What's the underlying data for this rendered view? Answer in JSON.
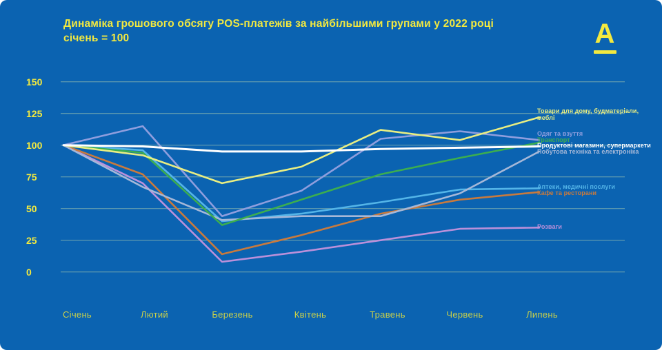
{
  "colors": {
    "background": "#0b63b1",
    "page_corner": "#ffffff",
    "accent_yellow": "#f3e93f",
    "month_label": "#c9d04a",
    "gridline": "rgba(205,228,175,0.55)"
  },
  "title": {
    "line1": "Динаміка грошового обсягу POS-платежів за найбільшими групами у 2022 році",
    "line2": "січень = 100"
  },
  "logo": {
    "letter": "А"
  },
  "chart_data": {
    "type": "line",
    "categories": [
      "Січень",
      "Лютий",
      "Березень",
      "Квітень",
      "Травень",
      "Червень",
      "Липень"
    ],
    "baseline_note": "січень = 100",
    "ylim": [
      0,
      150
    ],
    "yticks": [
      150,
      125,
      100,
      75,
      50,
      25,
      0
    ],
    "grid": true,
    "legend_position": "right-end-of-lines",
    "series": [
      {
        "name": "Товари для дому, будматеріали, меблі",
        "legend_lines": [
          "Товари для дому, будматеріали,",
          "меблі"
        ],
        "color": "#e9ee82",
        "bold": false,
        "values": [
          100,
          92,
          70,
          83,
          112,
          104,
          122
        ]
      },
      {
        "name": "Одяг та взуття",
        "legend_lines": [
          "Одяг та взуття"
        ],
        "color": "#8f9ede",
        "bold": false,
        "values": [
          100,
          115,
          44,
          64,
          105,
          111,
          104
        ]
      },
      {
        "name": "Транспорт",
        "legend_lines": [
          "Транспорт"
        ],
        "color": "#3cae4f",
        "bold": false,
        "values": [
          100,
          94,
          37,
          57,
          77,
          90,
          102
        ]
      },
      {
        "name": "Продуктові магазини, супермаркети",
        "legend_lines": [
          "Продуктові магазини, супермаркети"
        ],
        "color": "#ffffff",
        "bold": true,
        "values": [
          100,
          99,
          95,
          95,
          97,
          98,
          99
        ]
      },
      {
        "name": "Побутова техніка та електроніка",
        "legend_lines": [
          "Побутова техніка та електроніка"
        ],
        "color": "#a6b8d8",
        "bold": false,
        "values": [
          100,
          67,
          41,
          44,
          44,
          62,
          95
        ]
      },
      {
        "name": "Аптеки, медичні послуги",
        "legend_lines": [
          "Аптеки, медичні послуги"
        ],
        "color": "#54b5e8",
        "bold": false,
        "values": [
          100,
          96,
          40,
          46,
          55,
          65,
          66
        ]
      },
      {
        "name": "Кафе та ресторани",
        "legend_lines": [
          "Кафе та ресторани"
        ],
        "color": "#c97a3d",
        "bold": false,
        "values": [
          100,
          77,
          14,
          29,
          46,
          57,
          63
        ]
      },
      {
        "name": "Розваги",
        "legend_lines": [
          "Розваги"
        ],
        "color": "#bb90da",
        "bold": false,
        "values": [
          100,
          70,
          8,
          16,
          25,
          34,
          35
        ]
      }
    ]
  }
}
